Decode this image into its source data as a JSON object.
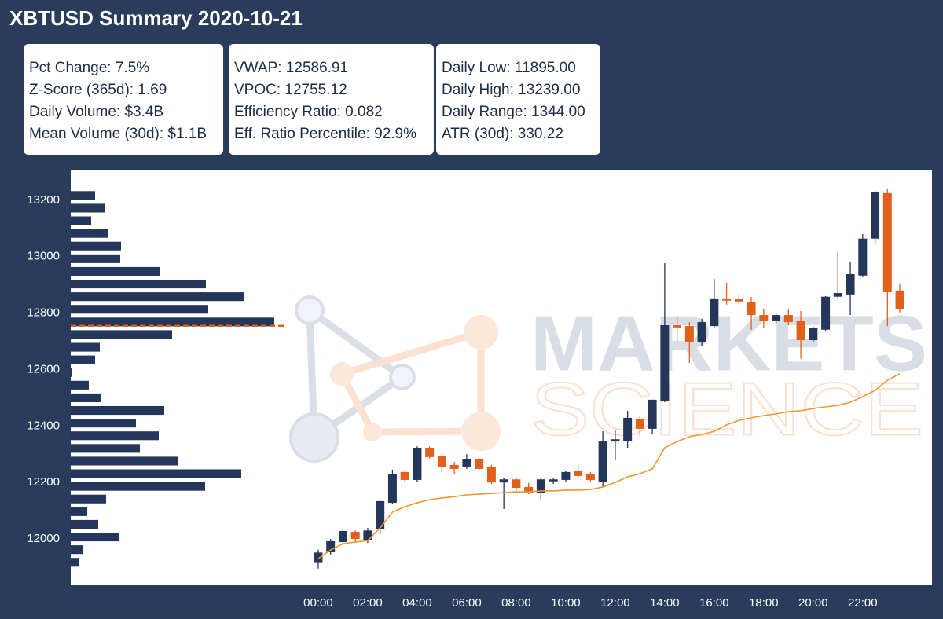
{
  "title": "XBTUSD Summary 2020-10-21",
  "stats": [
    [
      "Pct Change: 7.5%",
      "Z-Score (365d): 1.69",
      "Daily Volume: $3.4B",
      "Mean Volume (30d): $1.1B"
    ],
    [
      "VWAP: 12586.91",
      "VPOC: 12755.12",
      "Efficiency Ratio: 0.082",
      "Eff. Ratio Percentile: 92.9%"
    ],
    [
      "Daily Low: 11895.00",
      "Daily High: 13239.00",
      "Daily Range: 1344.00",
      "ATR (30d): 330.22"
    ]
  ],
  "watermark": [
    "MARKETS",
    "SCIENCE"
  ],
  "chart_data": {
    "type": "candlestick",
    "x": [
      0,
      0.5,
      1,
      1.5,
      2,
      2.5,
      3,
      3.5,
      4,
      4.5,
      5,
      5.5,
      6,
      6.5,
      7,
      7.5,
      8,
      8.5,
      9,
      9.5,
      10,
      10.5,
      11,
      11.5,
      12,
      12.5,
      13,
      13.5,
      14,
      14.5,
      15,
      15.5,
      16,
      16.5,
      17,
      17.5,
      18,
      18.5,
      19,
      19.5,
      20,
      20.5,
      21,
      21.5,
      22,
      22.5,
      23,
      23.5
    ],
    "open": [
      11915,
      11953,
      11989,
      12025,
      11995,
      12036,
      12128,
      12237,
      12209,
      12323,
      12295,
      12262,
      12256,
      12284,
      12256,
      12200,
      12211,
      12184,
      12164,
      12204,
      12209,
      12242,
      12231,
      12203,
      12345,
      12345,
      12426,
      12390,
      12487,
      12757,
      12754,
      12696,
      12754,
      12852,
      12849,
      12838,
      12793,
      12771,
      12793,
      12771,
      12704,
      12741,
      12858,
      12866,
      12933,
      13064,
      13225,
      12880
    ],
    "high": [
      11962,
      12000,
      12036,
      12030,
      12039,
      12139,
      12245,
      12242,
      12328,
      12328,
      12300,
      12273,
      12300,
      12287,
      12262,
      12217,
      12217,
      12198,
      12217,
      12217,
      12242,
      12262,
      12237,
      12381,
      12384,
      12454,
      12434,
      12493,
      12977,
      12793,
      12768,
      12780,
      12921,
      12908,
      12866,
      12857,
      12816,
      12799,
      12813,
      12807,
      12752,
      12860,
      13019,
      12983,
      13080,
      13233,
      13239,
      12902
    ],
    "low": [
      11895,
      11945,
      11983,
      11990,
      11986,
      12017,
      12125,
      12203,
      12203,
      12285,
      12237,
      12231,
      12248,
      12245,
      12195,
      12106,
      12173,
      12159,
      12134,
      12195,
      12203,
      12217,
      12203,
      12184,
      12278,
      12323,
      12365,
      12370,
      12484,
      12696,
      12624,
      12685,
      12749,
      12830,
      12830,
      12741,
      12749,
      12765,
      12757,
      12638,
      12696,
      12738,
      12852,
      12793,
      12930,
      13047,
      12754,
      12802
    ],
    "close": [
      11952,
      11992,
      12028,
      12000,
      12030,
      12134,
      12231,
      12209,
      12323,
      12290,
      12256,
      12248,
      12284,
      12248,
      12200,
      12211,
      12181,
      12164,
      12211,
      12211,
      12237,
      12223,
      12209,
      12345,
      12353,
      12429,
      12390,
      12493,
      12757,
      12749,
      12696,
      12768,
      12852,
      12844,
      12841,
      12793,
      12771,
      12793,
      12768,
      12704,
      12746,
      12858,
      12871,
      12938,
      13064,
      13228,
      12874,
      12813
    ],
    "up_color": "#24375a",
    "down_color": "#e0601c",
    "vwap": {
      "color": "#f0962e",
      "values": [
        11930,
        11961,
        11983,
        11989,
        11994,
        12039,
        12095,
        12114,
        12128,
        12139,
        12145,
        12150,
        12156,
        12159,
        12161,
        12164,
        12167,
        12167,
        12170,
        12170,
        12173,
        12173,
        12175,
        12184,
        12200,
        12220,
        12231,
        12248,
        12323,
        12345,
        12362,
        12370,
        12381,
        12404,
        12420,
        12429,
        12437,
        12443,
        12451,
        12454,
        12462,
        12468,
        12473,
        12484,
        12504,
        12526,
        12562,
        12585
      ]
    },
    "vpoc": {
      "value": 12755.12,
      "color": "#e0601c"
    },
    "profile": {
      "color": "#24375a",
      "bins": [
        11895.0,
        11939.8,
        11984.6,
        12029.4,
        12074.2,
        12119.0,
        12163.8,
        12208.6,
        12253.4,
        12298.2,
        12343.0,
        12387.8,
        12432.6,
        12477.4,
        12522.2,
        12567.0,
        12611.8,
        12656.6,
        12701.4,
        12746.2,
        12791.0,
        12835.8,
        12880.6,
        12925.4,
        12970.2,
        13015.0,
        13059.8,
        13104.6,
        13149.4,
        13194.2,
        13239.0
      ],
      "values": [
        10,
        16,
        62,
        35,
        21,
        45,
        171,
        217,
        137,
        88,
        112,
        83,
        119,
        38,
        23,
        2,
        31,
        37,
        129,
        259,
        175,
        221,
        172,
        114,
        63,
        64,
        47,
        26,
        43,
        31
      ]
    },
    "xlim": [
      -10,
      24.8
    ],
    "ylim": [
      11836,
      13308
    ],
    "yticks": [
      12000,
      12200,
      12400,
      12600,
      12800,
      13000,
      13200
    ],
    "xticks": [
      {
        "value": 0,
        "label": "00:00"
      },
      {
        "value": 2,
        "label": "02:00"
      },
      {
        "value": 4,
        "label": "04:00"
      },
      {
        "value": 6,
        "label": "06:00"
      },
      {
        "value": 8,
        "label": "08:00"
      },
      {
        "value": 10,
        "label": "10:00"
      },
      {
        "value": 12,
        "label": "12:00"
      },
      {
        "value": 14,
        "label": "14:00"
      },
      {
        "value": 16,
        "label": "16:00"
      },
      {
        "value": 18,
        "label": "18:00"
      },
      {
        "value": 20,
        "label": "20:00"
      },
      {
        "value": 22,
        "label": "22:00"
      }
    ]
  }
}
